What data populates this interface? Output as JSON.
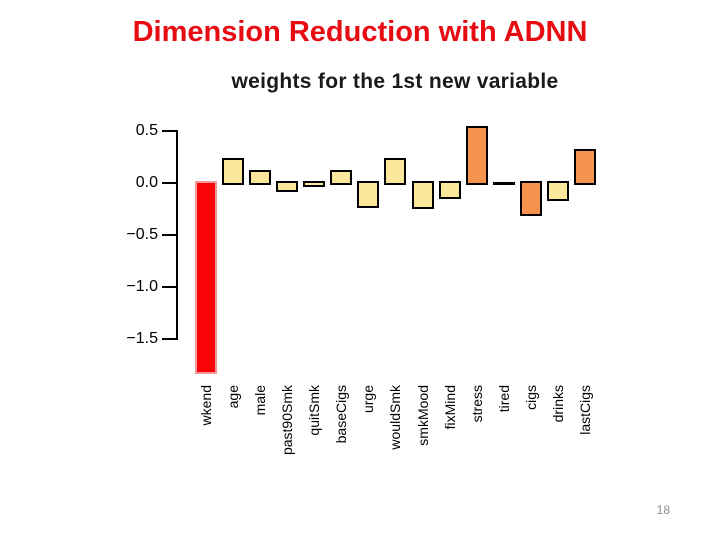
{
  "slide": {
    "title": "Dimension Reduction with ADNN",
    "title_color": "#e70b12",
    "page_number": "18",
    "page_number_color": "#8a8a8a"
  },
  "chart_data": {
    "type": "bar",
    "title": "weights for the 1st new variable",
    "categories": [
      "wkend",
      "age",
      "male",
      "past90Smk",
      "quitSmk",
      "baseCigs",
      "urge",
      "wouldSmk",
      "smkMood",
      "fixMind",
      "stress",
      "tired",
      "cigs",
      "drinks",
      "lastCigs"
    ],
    "values": [
      -1.81,
      0.22,
      0.11,
      -0.07,
      -0.02,
      0.11,
      -0.22,
      0.22,
      -0.23,
      -0.13,
      0.53,
      -0.01,
      -0.3,
      -0.15,
      0.31
    ],
    "bar_colors": [
      "#fb0209",
      "#fbe79b",
      "#fbe79b",
      "#fbe79b",
      "#fbe79b",
      "#fbe79b",
      "#fbe79b",
      "#fbe79b",
      "#fbe79b",
      "#fbe79b",
      "#f5924e",
      "#fbe79b",
      "#f5924e",
      "#fbe79b",
      "#f5924e"
    ],
    "bar_border_colors": [
      "#ef9a9a",
      "#000000",
      "#000000",
      "#000000",
      "#000000",
      "#000000",
      "#000000",
      "#000000",
      "#000000",
      "#000000",
      "#000000",
      "#000000",
      "#000000",
      "#000000",
      "#000000"
    ],
    "ytick_labels": [
      "0.5",
      "0.0",
      "−0.5",
      "−1.0",
      "−1.5"
    ],
    "ytick_values": [
      0.5,
      0.0,
      -0.5,
      -1.0,
      -1.5
    ],
    "ylim": [
      -1.9,
      0.6
    ],
    "xlabel": "",
    "ylabel": "",
    "grid": false,
    "legend_position": "none",
    "axis_color": "#000000"
  }
}
